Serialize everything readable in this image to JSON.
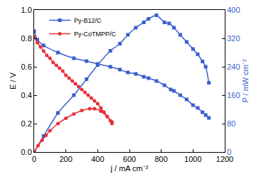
{
  "chart_data": {
    "type": "line",
    "x_label": "j / mA cm⁻²",
    "y_label": "E / V",
    "y2_label": "P / mW cm⁻²",
    "xlim": [
      0,
      1200
    ],
    "xticks": [
      0,
      200,
      400,
      600,
      800,
      1000,
      1200
    ],
    "ylim": [
      0,
      1
    ],
    "yticks": [
      {
        "value": 0,
        "label": "0.0"
      },
      0.2,
      0.4,
      0.6,
      0.8,
      {
        "value": 1,
        "label": "1.0"
      }
    ],
    "y2lim": [
      0,
      400
    ],
    "y2ticks": [
      0,
      80,
      160,
      240,
      320,
      400
    ],
    "legend": "top left",
    "grid": false,
    "series": [
      {
        "name": "Py-B12/C",
        "color": "#3a5fcd",
        "marker": "square",
        "line_style": "solid",
        "axis": "y",
        "x": [
          0,
          20,
          60,
          150,
          250,
          330,
          400,
          480,
          540,
          590,
          640,
          690,
          720,
          770,
          820,
          860,
          880,
          920,
          960,
          1000,
          1030,
          1060,
          1080,
          1100
        ],
        "values": [
          0.85,
          0.79,
          0.75,
          0.7,
          0.66,
          0.64,
          0.62,
          0.6,
          0.58,
          0.56,
          0.55,
          0.53,
          0.52,
          0.5,
          0.47,
          0.44,
          0.43,
          0.4,
          0.37,
          0.33,
          0.31,
          0.28,
          0.26,
          0.24
        ]
      },
      {
        "name": "Py-B12/C",
        "color": "#3a5fcd",
        "marker": "square",
        "line_style": "solid",
        "axis": "y2",
        "x": [
          0,
          60,
          150,
          250,
          330,
          400,
          480,
          540,
          590,
          640,
          690,
          720,
          770,
          820,
          850,
          880,
          920,
          960,
          1000,
          1030,
          1060,
          1080,
          1100
        ],
        "values": [
          0,
          45,
          110,
          160,
          205,
          245,
          285,
          305,
          330,
          350,
          365,
          375,
          385,
          365,
          362,
          350,
          330,
          310,
          290,
          275,
          255,
          240,
          195
        ]
      },
      {
        "name": "Py-CoTMPP/C",
        "color": "#e8303a",
        "marker": "circle",
        "line_style": "solid",
        "axis": "y",
        "x": [
          0,
          20,
          40,
          60,
          80,
          100,
          120,
          140,
          160,
          180,
          200,
          220,
          240,
          260,
          280,
          300,
          320,
          340,
          360,
          380,
          400,
          420,
          440,
          460,
          480,
          490
        ],
        "values": [
          0.81,
          0.77,
          0.74,
          0.71,
          0.68,
          0.66,
          0.63,
          0.61,
          0.59,
          0.57,
          0.54,
          0.52,
          0.5,
          0.48,
          0.46,
          0.44,
          0.42,
          0.4,
          0.38,
          0.36,
          0.34,
          0.31,
          0.28,
          0.25,
          0.22,
          0.2
        ]
      },
      {
        "name": "Py-CoTMPP/C",
        "color": "#e8303a",
        "marker": "circle",
        "line_style": "solid",
        "axis": "y2",
        "x": [
          0,
          25,
          50,
          75,
          100,
          150,
          200,
          250,
          300,
          350,
          380,
          420,
          460,
          490
        ],
        "values": [
          0,
          18,
          33,
          47,
          60,
          80,
          95,
          107,
          117,
          122,
          122,
          115,
          100,
          85
        ]
      }
    ]
  }
}
